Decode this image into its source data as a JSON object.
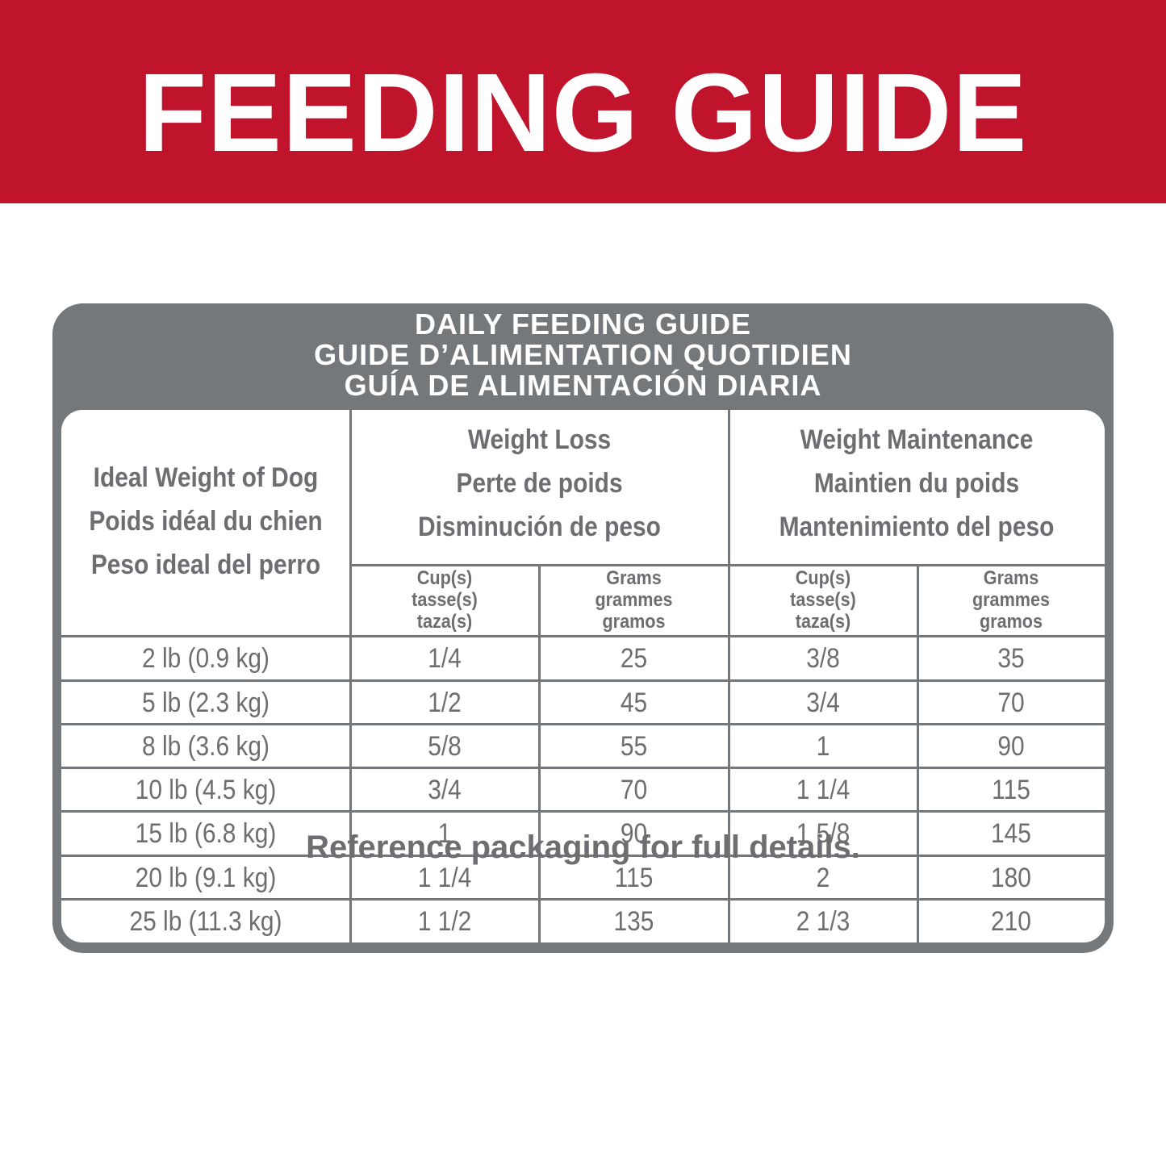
{
  "header": {
    "title": "FEEDING GUIDE"
  },
  "guide": {
    "title_lines": [
      "DAILY FEEDING GUIDE",
      "GUIDE D’ALIMENTATION QUOTIDIEN",
      "GUÍA DE ALIMENTACIÓN DIARIA"
    ],
    "table": {
      "first_header": [
        "Ideal Weight of Dog",
        "Poids idéal du chien",
        "Peso ideal del perro"
      ],
      "groups": [
        {
          "lines": [
            "Weight Loss",
            "Perte de poids",
            "Disminución de peso"
          ],
          "subcolumns": [
            [
              "Cup(s)",
              "tasse(s)",
              "taza(s)"
            ],
            [
              "Grams",
              "grammes",
              "gramos"
            ]
          ]
        },
        {
          "lines": [
            "Weight Maintenance",
            "Maintien du poids",
            "Mantenimiento del peso"
          ],
          "subcolumns": [
            [
              "Cup(s)",
              "tasse(s)",
              "taza(s)"
            ],
            [
              "Grams",
              "grammes",
              "gramos"
            ]
          ]
        }
      ],
      "rows": [
        [
          "2 lb (0.9 kg)",
          "1/4",
          "25",
          "3/8",
          "35"
        ],
        [
          "5 lb (2.3 kg)",
          "1/2",
          "45",
          "3/4",
          "70"
        ],
        [
          "8 lb (3.6 kg)",
          "5/8",
          "55",
          "1",
          "90"
        ],
        [
          "10 lb (4.5 kg)",
          "3/4",
          "70",
          "1 1/4",
          "115"
        ],
        [
          "15 lb (6.8 kg)",
          "1",
          "90",
          "1 5/8",
          "145"
        ],
        [
          "20 lb (9.1 kg)",
          "1 1/4",
          "115",
          "2",
          "180"
        ],
        [
          "25 lb (11.3 kg)",
          "1 1/2",
          "135",
          "2 1/3",
          "210"
        ]
      ]
    }
  },
  "footer": {
    "note": "Reference packaging for full details."
  }
}
